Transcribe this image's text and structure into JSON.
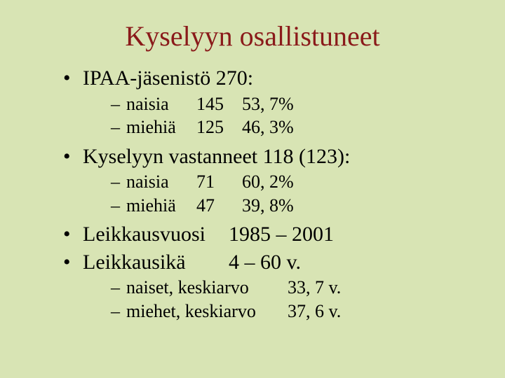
{
  "background_color": "#d8e4b4",
  "title_color": "#8a1a1a",
  "text_color": "#000000",
  "title": "Kyselyyn osallistuneet",
  "bullets": {
    "b1": {
      "label": "IPAA-jäsenistö 270:",
      "rows": [
        {
          "label": "naisia",
          "count": "145",
          "pct": "53, 7%"
        },
        {
          "label": "miehiä",
          "count": "125",
          "pct": "46, 3%"
        }
      ]
    },
    "b2": {
      "label": "Kyselyyn vastanneet 118 (123):",
      "rows": [
        {
          "label": "naisia",
          "count": "71",
          "pct": "60, 2%"
        },
        {
          "label": "miehiä",
          "count": "47",
          "pct": "39, 8%"
        }
      ]
    },
    "b3": {
      "label": "Leikkausvuosi",
      "value": "1985 – 2001"
    },
    "b4": {
      "label": "Leikkausikä",
      "value": "4 – 60 v.",
      "rows": [
        {
          "label": "naiset, keskiarvo",
          "value": "33, 7 v."
        },
        {
          "label": "miehet, keskiarvo",
          "value": "37, 6 v."
        }
      ]
    }
  }
}
